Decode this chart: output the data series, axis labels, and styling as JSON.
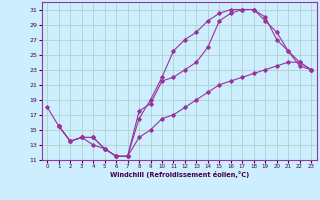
{
  "xlabel": "Windchill (Refroidissement éolien,°C)",
  "background_color": "#cceeff",
  "grid_color": "#aaccbb",
  "line_color": "#993399",
  "xlim": [
    -0.5,
    23.5
  ],
  "ylim": [
    11,
    32
  ],
  "yticks": [
    11,
    13,
    15,
    17,
    19,
    21,
    23,
    25,
    27,
    29,
    31
  ],
  "xticks": [
    0,
    1,
    2,
    3,
    4,
    5,
    6,
    7,
    8,
    9,
    10,
    11,
    12,
    13,
    14,
    15,
    16,
    17,
    18,
    19,
    20,
    21,
    22,
    23
  ],
  "curve1_x": [
    0,
    1,
    2,
    3,
    4,
    5,
    6,
    7,
    8,
    9,
    10,
    11,
    12,
    13,
    14,
    15,
    16,
    17,
    18,
    19,
    20,
    21,
    22,
    23
  ],
  "curve1_y": [
    18,
    15.5,
    13.5,
    14,
    13,
    12.5,
    11.5,
    11.5,
    16.5,
    19,
    22,
    25.5,
    27,
    28,
    29.5,
    30.5,
    31,
    31,
    31,
    29.5,
    28,
    25.5,
    23.5,
    23
  ],
  "curve2_x": [
    1,
    2,
    3,
    4,
    5,
    6,
    7,
    8,
    9,
    10,
    11,
    12,
    13,
    14,
    15,
    16,
    17,
    18,
    19,
    20,
    21,
    22,
    23
  ],
  "curve2_y": [
    15.5,
    13.5,
    14,
    14,
    12.5,
    11.5,
    11.5,
    17.5,
    18.5,
    21.5,
    22,
    23,
    24,
    26,
    29.5,
    30.5,
    31,
    31,
    30,
    27,
    25.5,
    24,
    23
  ],
  "curve3_x": [
    1,
    2,
    3,
    4,
    5,
    6,
    7,
    8,
    9,
    10,
    11,
    12,
    13,
    14,
    15,
    16,
    17,
    18,
    19,
    20,
    21,
    22,
    23
  ],
  "curve3_y": [
    15.5,
    13.5,
    14,
    14,
    12.5,
    11.5,
    11.5,
    14,
    15,
    16.5,
    17,
    18,
    19,
    20,
    21,
    21.5,
    22,
    22.5,
    23,
    23.5,
    24,
    24,
    23
  ]
}
